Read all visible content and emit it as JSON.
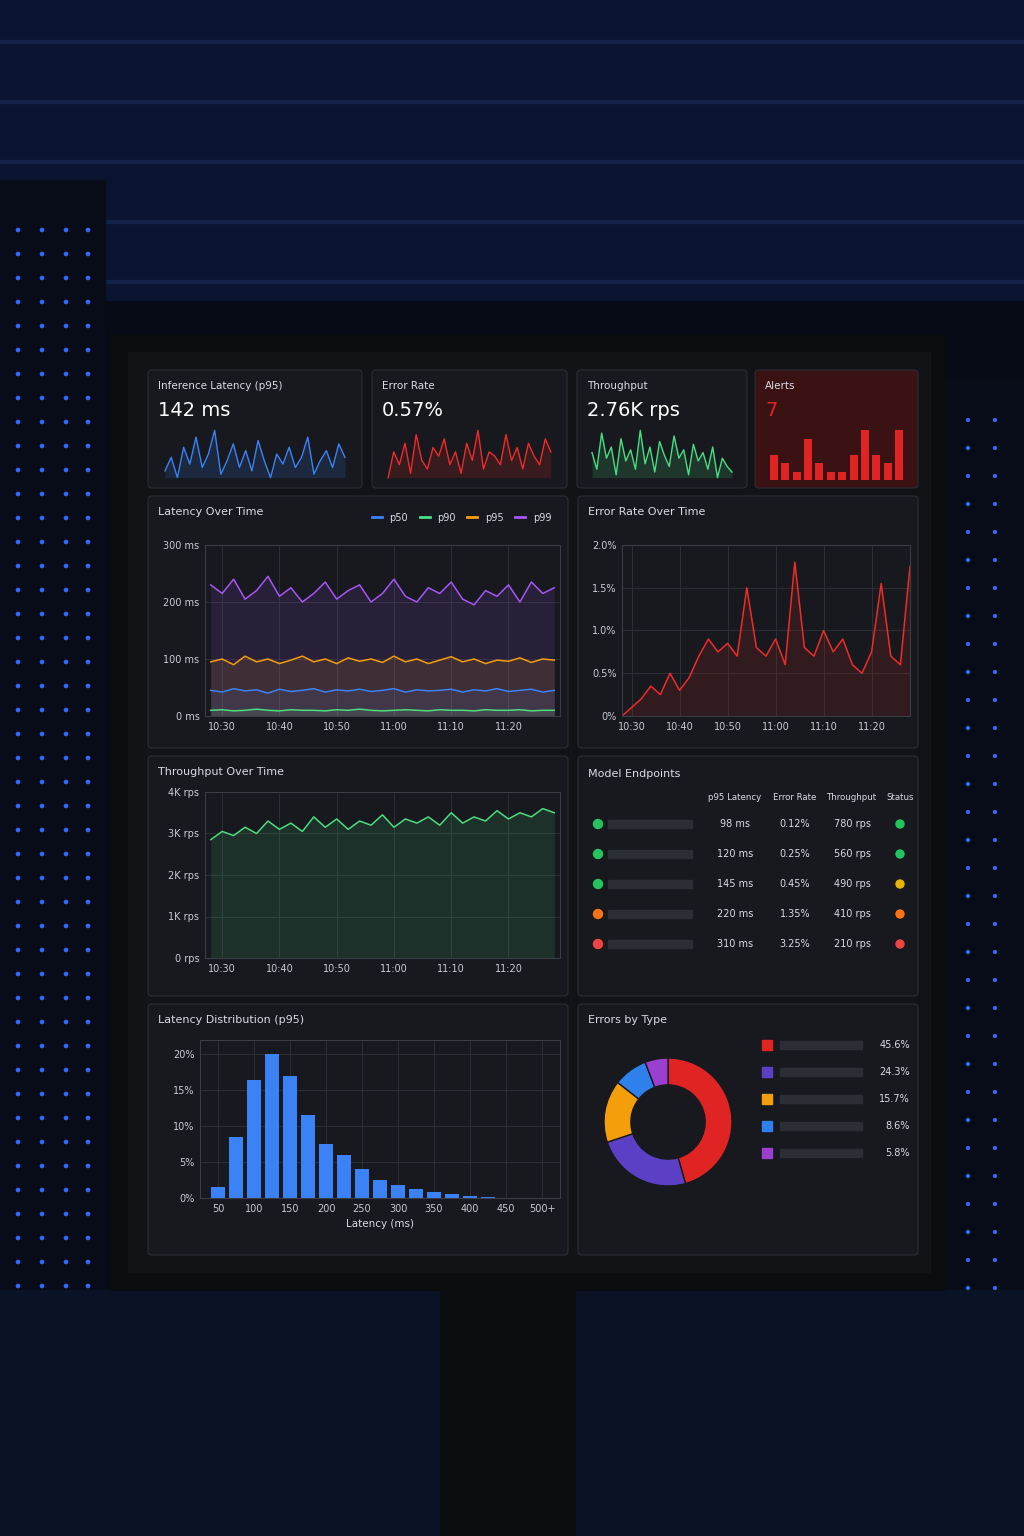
{
  "kpis": [
    {
      "title": "Inference Latency (p95)",
      "value": "142 ms",
      "type": "line",
      "color": "#3b82f6",
      "sparkline": [
        138,
        142,
        136,
        145,
        140,
        148,
        139,
        143,
        150,
        137,
        141,
        146,
        139,
        144,
        138,
        147,
        141,
        136,
        143,
        140,
        145,
        139,
        142,
        148,
        137,
        141,
        144,
        139,
        146,
        142
      ]
    },
    {
      "title": "Error Rate",
      "value": "0.57%",
      "type": "line",
      "color": "#ef2b2b",
      "sparkline": [
        0.52,
        0.58,
        0.55,
        0.6,
        0.53,
        0.62,
        0.56,
        0.54,
        0.59,
        0.57,
        0.61,
        0.55,
        0.58,
        0.53,
        0.6,
        0.56,
        0.63,
        0.54,
        0.58,
        0.57,
        0.55,
        0.62,
        0.56,
        0.59,
        0.54,
        0.6,
        0.57,
        0.55,
        0.61,
        0.58
      ]
    },
    {
      "title": "Throughput",
      "value": "2.76K rps",
      "type": "line",
      "color": "#4ade80",
      "sparkline": [
        2780,
        2720,
        2850,
        2760,
        2800,
        2700,
        2830,
        2750,
        2790,
        2720,
        2860,
        2740,
        2800,
        2710,
        2820,
        2770,
        2730,
        2840,
        2760,
        2790,
        2700,
        2810,
        2750,
        2780,
        2720,
        2800,
        2690,
        2760,
        2730,
        2710
      ]
    },
    {
      "title": "Alerts",
      "value": "7",
      "type": "bar",
      "color": "#e02424",
      "sparkline": [
        3,
        2,
        1,
        5,
        2,
        1,
        1,
        3,
        6,
        3,
        2,
        6
      ]
    }
  ],
  "chart_data": [
    {
      "type": "line",
      "title": "Latency Over Time",
      "x": [
        -2,
        0,
        2,
        4,
        6,
        8,
        10,
        12,
        14,
        16,
        18,
        20,
        22,
        24,
        26,
        28,
        30,
        32,
        34,
        36,
        38,
        40,
        42,
        44,
        46,
        48,
        50,
        52,
        54,
        56,
        58
      ],
      "xlim": [
        -3,
        59
      ],
      "xticks": [
        {
          "value": 0,
          "label": "10:30"
        },
        {
          "value": 10,
          "label": "10:40"
        },
        {
          "value": 20,
          "label": "10:50"
        },
        {
          "value": 30,
          "label": "11:00"
        },
        {
          "value": 40,
          "label": "11:10"
        },
        {
          "value": 50,
          "label": "11:20"
        }
      ],
      "ylim": [
        0,
        300
      ],
      "yticks": [
        {
          "value": 0,
          "label": "0 ms"
        },
        {
          "value": 100,
          "label": "100 ms"
        },
        {
          "value": 200,
          "label": "200 ms"
        },
        {
          "value": 300,
          "label": "300 ms"
        }
      ],
      "grid": true,
      "legend": "upper right",
      "series": [
        {
          "name": "p50",
          "color": "#3b82f6",
          "values": [
            45,
            42,
            48,
            44,
            46,
            40,
            47,
            43,
            45,
            48,
            42,
            46,
            44,
            47,
            43,
            45,
            48,
            42,
            46,
            44,
            45,
            47,
            42,
            46,
            44,
            48,
            43,
            45,
            47,
            42,
            45
          ]
        },
        {
          "name": "p90",
          "color": "#4ade80",
          "values": [
            10,
            11,
            9,
            10,
            12,
            10,
            9,
            11,
            10,
            10,
            9,
            11,
            10,
            12,
            10,
            9,
            10,
            11,
            10,
            9,
            11,
            10,
            10,
            9,
            11,
            10,
            10,
            11,
            9,
            10,
            10
          ]
        },
        {
          "name": "p95",
          "color": "#f59e0b",
          "values": [
            95,
            100,
            90,
            105,
            95,
            100,
            92,
            98,
            105,
            95,
            100,
            92,
            102,
            96,
            100,
            94,
            105,
            95,
            100,
            92,
            98,
            104,
            95,
            100,
            92,
            98,
            96,
            102,
            94,
            100,
            98
          ]
        },
        {
          "name": "p99",
          "color": "#a855f7",
          "values": [
            230,
            215,
            240,
            205,
            220,
            245,
            210,
            225,
            200,
            215,
            235,
            205,
            220,
            230,
            200,
            215,
            240,
            210,
            200,
            225,
            215,
            235,
            205,
            195,
            220,
            210,
            230,
            200,
            235,
            215,
            225
          ]
        }
      ]
    },
    {
      "type": "line",
      "title": "Error Rate Over Time",
      "x": [
        -2,
        0,
        2,
        4,
        6,
        8,
        10,
        12,
        14,
        16,
        18,
        20,
        22,
        24,
        26,
        28,
        30,
        32,
        34,
        36,
        38,
        40,
        42,
        44,
        46,
        48,
        50,
        52,
        54,
        56,
        58
      ],
      "xlim": [
        -2,
        58
      ],
      "xticks": [
        {
          "value": 0,
          "label": "10:30"
        },
        {
          "value": 10,
          "label": "10:40"
        },
        {
          "value": 20,
          "label": "10:50"
        },
        {
          "value": 30,
          "label": "11:00"
        },
        {
          "value": 40,
          "label": "11:10"
        },
        {
          "value": 50,
          "label": "11:20"
        }
      ],
      "ylim": [
        0,
        2.0
      ],
      "yticks": [
        {
          "value": 0,
          "label": "0%"
        },
        {
          "value": 0.5,
          "label": "0.5%"
        },
        {
          "value": 1.0,
          "label": "1.0%"
        },
        {
          "value": 1.5,
          "label": "1.5%"
        },
        {
          "value": 2.0,
          "label": "2.0%"
        }
      ],
      "grid": true,
      "series": [
        {
          "color": "#ef2b2b",
          "values": [
            0.0,
            0.1,
            0.2,
            0.35,
            0.25,
            0.5,
            0.3,
            0.45,
            0.7,
            0.9,
            0.75,
            0.85,
            0.7,
            1.5,
            0.8,
            0.7,
            0.9,
            0.6,
            1.8,
            0.8,
            0.7,
            1.0,
            0.75,
            0.9,
            0.6,
            0.5,
            0.75,
            1.55,
            0.7,
            0.6,
            1.75
          ]
        }
      ]
    },
    {
      "type": "line",
      "title": "Throughput Over Time",
      "x": [
        -2,
        0,
        2,
        4,
        6,
        8,
        10,
        12,
        14,
        16,
        18,
        20,
        22,
        24,
        26,
        28,
        30,
        32,
        34,
        36,
        38,
        40,
        42,
        44,
        46,
        48,
        50,
        52,
        54,
        56,
        58
      ],
      "xlim": [
        -3,
        59
      ],
      "xticks": [
        {
          "value": 0,
          "label": "10:30"
        },
        {
          "value": 10,
          "label": "10:40"
        },
        {
          "value": 20,
          "label": "10:50"
        },
        {
          "value": 30,
          "label": "11:00"
        },
        {
          "value": 40,
          "label": "11:10"
        },
        {
          "value": 50,
          "label": "11:20"
        }
      ],
      "ylim": [
        0,
        4000
      ],
      "yticks": [
        {
          "value": 0,
          "label": "0 rps"
        },
        {
          "value": 1000,
          "label": "1K rps"
        },
        {
          "value": 2000,
          "label": "2K rps"
        },
        {
          "value": 3000,
          "label": "3K rps"
        },
        {
          "value": 4000,
          "label": "4K rps"
        }
      ],
      "grid": true,
      "series": [
        {
          "color": "#4ade80",
          "values": [
            2850,
            3050,
            2950,
            3150,
            3000,
            3300,
            3100,
            3250,
            3050,
            3400,
            3150,
            3350,
            3100,
            3300,
            3200,
            3450,
            3150,
            3350,
            3250,
            3400,
            3200,
            3500,
            3250,
            3400,
            3300,
            3550,
            3350,
            3500,
            3400,
            3600,
            3500
          ]
        }
      ]
    },
    {
      "type": "histogram",
      "title": "Latency Distribution (p95)",
      "x_label": "Latency (ms)",
      "color": "#3b82f6",
      "bins": [
        37.5,
        62.5,
        87.5,
        112.5,
        137.5,
        162.5,
        187.5,
        212.5,
        237.5,
        262.5,
        287.5,
        312.5,
        337.5,
        362.5,
        387.5,
        412.5,
        437.5
      ],
      "counts": [
        1.5,
        8.5,
        16.5,
        20,
        17,
        11.5,
        7.5,
        6,
        4,
        2.5,
        1.8,
        1.2,
        0.8,
        0.5,
        0.3,
        0.2
      ],
      "xlim": [
        25,
        525
      ],
      "xticks": [
        50,
        100,
        150,
        200,
        250,
        300,
        350,
        400,
        450,
        {
          "value": 500,
          "label": "500+"
        }
      ],
      "ylim": [
        0,
        22
      ],
      "yticks": [
        {
          "value": 0,
          "label": "0%"
        },
        {
          "value": 5,
          "label": "5%"
        },
        {
          "value": 10,
          "label": "10%"
        },
        {
          "value": 15,
          "label": "15%"
        },
        {
          "value": 20,
          "label": "20%"
        }
      ],
      "grid": true
    },
    {
      "type": "donut",
      "title": "Errors by Type",
      "values": [
        45.6,
        24.3,
        15.7,
        8.6,
        5.8
      ],
      "value_labels": [
        "45.6%",
        "24.3%",
        "15.7%",
        "8.6%",
        "5.8%"
      ],
      "colors": [
        "#e02424",
        "#5b3fc4",
        "#f59e0b",
        "#2f80ed",
        "#9b3fd0"
      ]
    }
  ],
  "table": {
    "title": "Model Endpoints",
    "columns": [
      "p95 Latency",
      "Error Rate",
      "Throughput",
      "Status"
    ],
    "rows": [
      {
        "indicator": "#22c55e",
        "cells": [
          "98 ms",
          "0.12%",
          "780 rps"
        ],
        "status": "#22c55e"
      },
      {
        "indicator": "#22c55e",
        "cells": [
          "120 ms",
          "0.25%",
          "560 rps"
        ],
        "status": "#22c55e"
      },
      {
        "indicator": "#22c55e",
        "cells": [
          "145 ms",
          "0.45%",
          "490 rps"
        ],
        "status": "#eab308"
      },
      {
        "indicator": "#f97316",
        "cells": [
          "220 ms",
          "1.35%",
          "410 rps"
        ],
        "status": "#f97316"
      },
      {
        "indicator": "#ef4444",
        "cells": [
          "310 ms",
          "3.25%",
          "210 rps"
        ],
        "status": "#ef4444"
      }
    ]
  }
}
